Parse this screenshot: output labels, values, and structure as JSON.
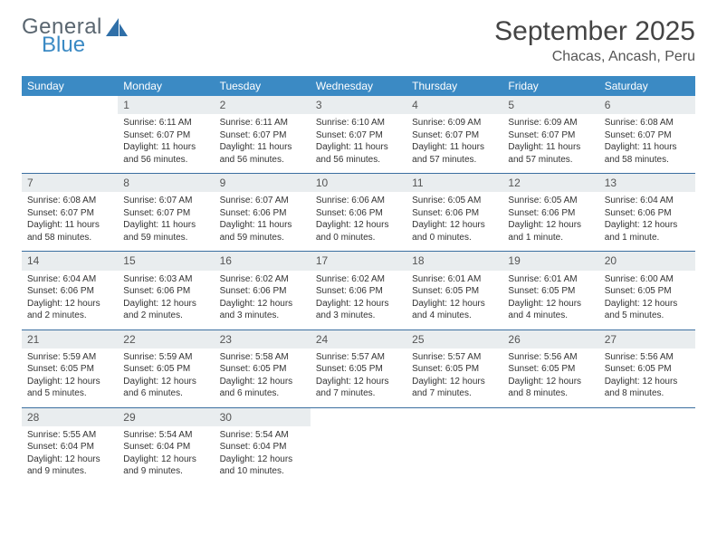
{
  "brand": {
    "top": "General",
    "bottom": "Blue"
  },
  "title": "September 2025",
  "location": "Chacas, Ancash, Peru",
  "colors": {
    "header_bg": "#3b8ac4",
    "header_text": "#ffffff",
    "daynum_bg": "#e9edef",
    "week_divider": "#3b6fa0",
    "text": "#333333"
  },
  "weekdays": [
    "Sunday",
    "Monday",
    "Tuesday",
    "Wednesday",
    "Thursday",
    "Friday",
    "Saturday"
  ],
  "weeks": [
    [
      {
        "num": "",
        "sunrise": "",
        "sunset": "",
        "daylight": ""
      },
      {
        "num": "1",
        "sunrise": "Sunrise: 6:11 AM",
        "sunset": "Sunset: 6:07 PM",
        "daylight": "Daylight: 11 hours and 56 minutes."
      },
      {
        "num": "2",
        "sunrise": "Sunrise: 6:11 AM",
        "sunset": "Sunset: 6:07 PM",
        "daylight": "Daylight: 11 hours and 56 minutes."
      },
      {
        "num": "3",
        "sunrise": "Sunrise: 6:10 AM",
        "sunset": "Sunset: 6:07 PM",
        "daylight": "Daylight: 11 hours and 56 minutes."
      },
      {
        "num": "4",
        "sunrise": "Sunrise: 6:09 AM",
        "sunset": "Sunset: 6:07 PM",
        "daylight": "Daylight: 11 hours and 57 minutes."
      },
      {
        "num": "5",
        "sunrise": "Sunrise: 6:09 AM",
        "sunset": "Sunset: 6:07 PM",
        "daylight": "Daylight: 11 hours and 57 minutes."
      },
      {
        "num": "6",
        "sunrise": "Sunrise: 6:08 AM",
        "sunset": "Sunset: 6:07 PM",
        "daylight": "Daylight: 11 hours and 58 minutes."
      }
    ],
    [
      {
        "num": "7",
        "sunrise": "Sunrise: 6:08 AM",
        "sunset": "Sunset: 6:07 PM",
        "daylight": "Daylight: 11 hours and 58 minutes."
      },
      {
        "num": "8",
        "sunrise": "Sunrise: 6:07 AM",
        "sunset": "Sunset: 6:07 PM",
        "daylight": "Daylight: 11 hours and 59 minutes."
      },
      {
        "num": "9",
        "sunrise": "Sunrise: 6:07 AM",
        "sunset": "Sunset: 6:06 PM",
        "daylight": "Daylight: 11 hours and 59 minutes."
      },
      {
        "num": "10",
        "sunrise": "Sunrise: 6:06 AM",
        "sunset": "Sunset: 6:06 PM",
        "daylight": "Daylight: 12 hours and 0 minutes."
      },
      {
        "num": "11",
        "sunrise": "Sunrise: 6:05 AM",
        "sunset": "Sunset: 6:06 PM",
        "daylight": "Daylight: 12 hours and 0 minutes."
      },
      {
        "num": "12",
        "sunrise": "Sunrise: 6:05 AM",
        "sunset": "Sunset: 6:06 PM",
        "daylight": "Daylight: 12 hours and 1 minute."
      },
      {
        "num": "13",
        "sunrise": "Sunrise: 6:04 AM",
        "sunset": "Sunset: 6:06 PM",
        "daylight": "Daylight: 12 hours and 1 minute."
      }
    ],
    [
      {
        "num": "14",
        "sunrise": "Sunrise: 6:04 AM",
        "sunset": "Sunset: 6:06 PM",
        "daylight": "Daylight: 12 hours and 2 minutes."
      },
      {
        "num": "15",
        "sunrise": "Sunrise: 6:03 AM",
        "sunset": "Sunset: 6:06 PM",
        "daylight": "Daylight: 12 hours and 2 minutes."
      },
      {
        "num": "16",
        "sunrise": "Sunrise: 6:02 AM",
        "sunset": "Sunset: 6:06 PM",
        "daylight": "Daylight: 12 hours and 3 minutes."
      },
      {
        "num": "17",
        "sunrise": "Sunrise: 6:02 AM",
        "sunset": "Sunset: 6:06 PM",
        "daylight": "Daylight: 12 hours and 3 minutes."
      },
      {
        "num": "18",
        "sunrise": "Sunrise: 6:01 AM",
        "sunset": "Sunset: 6:05 PM",
        "daylight": "Daylight: 12 hours and 4 minutes."
      },
      {
        "num": "19",
        "sunrise": "Sunrise: 6:01 AM",
        "sunset": "Sunset: 6:05 PM",
        "daylight": "Daylight: 12 hours and 4 minutes."
      },
      {
        "num": "20",
        "sunrise": "Sunrise: 6:00 AM",
        "sunset": "Sunset: 6:05 PM",
        "daylight": "Daylight: 12 hours and 5 minutes."
      }
    ],
    [
      {
        "num": "21",
        "sunrise": "Sunrise: 5:59 AM",
        "sunset": "Sunset: 6:05 PM",
        "daylight": "Daylight: 12 hours and 5 minutes."
      },
      {
        "num": "22",
        "sunrise": "Sunrise: 5:59 AM",
        "sunset": "Sunset: 6:05 PM",
        "daylight": "Daylight: 12 hours and 6 minutes."
      },
      {
        "num": "23",
        "sunrise": "Sunrise: 5:58 AM",
        "sunset": "Sunset: 6:05 PM",
        "daylight": "Daylight: 12 hours and 6 minutes."
      },
      {
        "num": "24",
        "sunrise": "Sunrise: 5:57 AM",
        "sunset": "Sunset: 6:05 PM",
        "daylight": "Daylight: 12 hours and 7 minutes."
      },
      {
        "num": "25",
        "sunrise": "Sunrise: 5:57 AM",
        "sunset": "Sunset: 6:05 PM",
        "daylight": "Daylight: 12 hours and 7 minutes."
      },
      {
        "num": "26",
        "sunrise": "Sunrise: 5:56 AM",
        "sunset": "Sunset: 6:05 PM",
        "daylight": "Daylight: 12 hours and 8 minutes."
      },
      {
        "num": "27",
        "sunrise": "Sunrise: 5:56 AM",
        "sunset": "Sunset: 6:05 PM",
        "daylight": "Daylight: 12 hours and 8 minutes."
      }
    ],
    [
      {
        "num": "28",
        "sunrise": "Sunrise: 5:55 AM",
        "sunset": "Sunset: 6:04 PM",
        "daylight": "Daylight: 12 hours and 9 minutes."
      },
      {
        "num": "29",
        "sunrise": "Sunrise: 5:54 AM",
        "sunset": "Sunset: 6:04 PM",
        "daylight": "Daylight: 12 hours and 9 minutes."
      },
      {
        "num": "30",
        "sunrise": "Sunrise: 5:54 AM",
        "sunset": "Sunset: 6:04 PM",
        "daylight": "Daylight: 12 hours and 10 minutes."
      },
      {
        "num": "",
        "sunrise": "",
        "sunset": "",
        "daylight": ""
      },
      {
        "num": "",
        "sunrise": "",
        "sunset": "",
        "daylight": ""
      },
      {
        "num": "",
        "sunrise": "",
        "sunset": "",
        "daylight": ""
      },
      {
        "num": "",
        "sunrise": "",
        "sunset": "",
        "daylight": ""
      }
    ]
  ]
}
